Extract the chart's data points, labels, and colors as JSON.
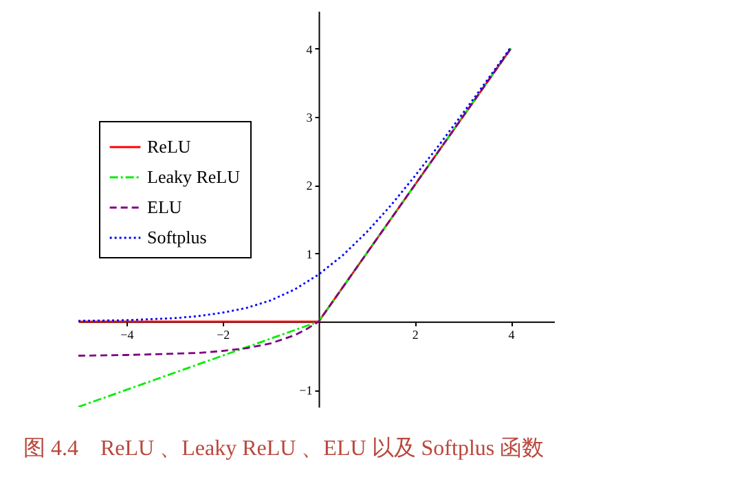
{
  "chart_data": {
    "type": "line",
    "annotations": [
      "图 4.4　ReLU 、Leaky ReLU 、ELU 以及 Softplus 函数"
    ],
    "xlim": [
      -5,
      4.9
    ],
    "ylim": [
      -1.25,
      4.55
    ],
    "xticks": [
      -4,
      -2,
      2,
      4
    ],
    "yticks": [
      -1,
      1,
      2,
      3,
      4
    ],
    "grid": false,
    "legend": "top left",
    "marker": "none",
    "series": [
      {
        "name": "ReLU",
        "color": "#ff0000",
        "line_style": "solid",
        "x": [
          -5,
          0,
          4
        ],
        "values": [
          0,
          0,
          4
        ]
      },
      {
        "name": "Leaky ReLU",
        "color": "#00ee00",
        "line_style": "dashdot",
        "x": [
          -5,
          0,
          4
        ],
        "values": [
          -1.25,
          0,
          4
        ]
      },
      {
        "name": "ELU",
        "color": "#800080",
        "line_style": "dashed",
        "x": [
          -5,
          -4,
          -3,
          -2.5,
          -2,
          -1.5,
          -1,
          -0.5,
          -0.25,
          0,
          4
        ],
        "values": [
          -0.5,
          -0.49,
          -0.47,
          -0.46,
          -0.43,
          -0.39,
          -0.32,
          -0.2,
          -0.11,
          0,
          4
        ]
      },
      {
        "name": "Softplus",
        "color": "#0000ff",
        "line_style": "dotted",
        "x": [
          -5,
          -4,
          -3,
          -2.5,
          -2,
          -1.5,
          -1,
          -0.5,
          0,
          0.5,
          1,
          1.5,
          2,
          2.5,
          3,
          3.5,
          4
        ],
        "values": [
          0.01,
          0.02,
          0.05,
          0.08,
          0.13,
          0.2,
          0.31,
          0.47,
          0.69,
          0.97,
          1.31,
          1.7,
          2.13,
          2.58,
          3.05,
          3.53,
          4.02
        ]
      }
    ]
  }
}
